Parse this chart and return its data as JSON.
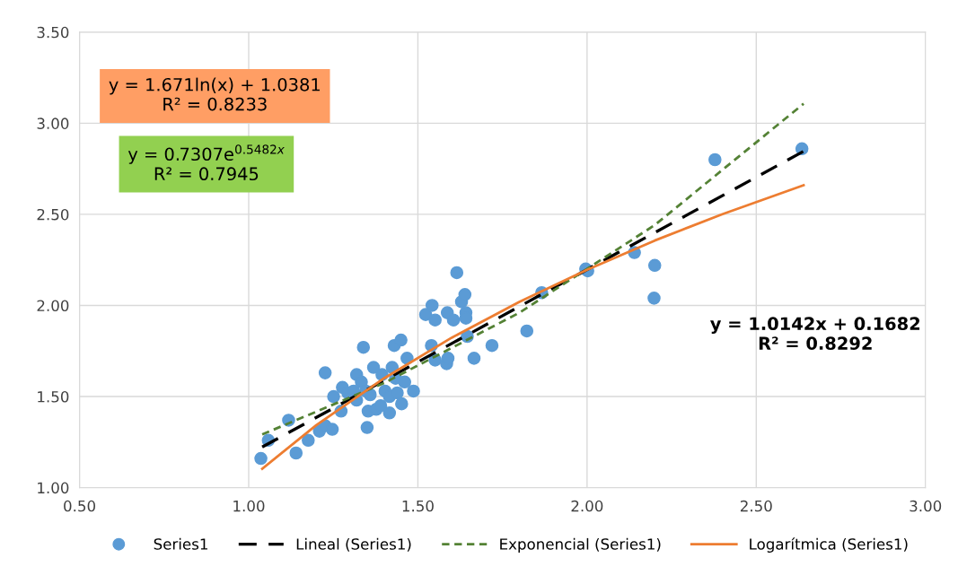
{
  "chart_data": {
    "type": "scatter",
    "xlim": [
      0.5,
      3.0
    ],
    "ylim": [
      1.0,
      3.5
    ],
    "xticks": [
      {
        "value": 0.5,
        "label": "0.50"
      },
      {
        "value": 1.0,
        "label": "1.00"
      },
      {
        "value": 1.5,
        "label": "1.50"
      },
      {
        "value": 2.0,
        "label": "2.00"
      },
      {
        "value": 2.5,
        "label": "2.50"
      },
      {
        "value": 3.0,
        "label": "3.00"
      }
    ],
    "yticks": [
      {
        "value": 1.0,
        "label": "1.00"
      },
      {
        "value": 1.5,
        "label": "1.50"
      },
      {
        "value": 2.0,
        "label": "2.00"
      },
      {
        "value": 2.5,
        "label": "2.50"
      },
      {
        "value": 3.0,
        "label": "3.00"
      },
      {
        "value": 3.5,
        "label": "3.50"
      }
    ],
    "grid": true,
    "legend": "bottom",
    "series": [
      {
        "name": "Series1",
        "marker": "circle",
        "color": "#5b9bd5",
        "x": [
          1.036,
          1.058,
          1.118,
          1.14,
          1.176,
          1.209,
          1.226,
          1.247,
          1.226,
          1.251,
          1.273,
          1.277,
          1.293,
          1.319,
          1.319,
          1.333,
          1.339,
          1.31,
          1.346,
          1.35,
          1.353,
          1.359,
          1.369,
          1.377,
          1.39,
          1.394,
          1.403,
          1.416,
          1.416,
          1.424,
          1.43,
          1.434,
          1.439,
          1.45,
          1.452,
          1.461,
          1.468,
          1.487,
          1.523,
          1.542,
          1.551,
          1.54,
          1.551,
          1.585,
          1.589,
          1.587,
          1.605,
          1.615,
          1.629,
          1.639,
          1.642,
          1.642,
          1.646,
          1.666,
          1.719,
          1.822,
          1.866,
          1.996,
          2.002,
          2.14,
          2.2,
          2.198,
          2.378,
          2.635
        ],
        "values": [
          1.16,
          1.26,
          1.37,
          1.19,
          1.26,
          1.31,
          1.34,
          1.32,
          1.63,
          1.5,
          1.42,
          1.55,
          1.52,
          1.62,
          1.48,
          1.58,
          1.77,
          1.53,
          1.53,
          1.33,
          1.42,
          1.51,
          1.66,
          1.43,
          1.45,
          1.62,
          1.53,
          1.41,
          1.5,
          1.66,
          1.78,
          1.6,
          1.52,
          1.81,
          1.46,
          1.58,
          1.71,
          1.53,
          1.95,
          2.0,
          1.92,
          1.78,
          1.7,
          1.68,
          1.71,
          1.96,
          1.92,
          2.18,
          2.02,
          2.06,
          1.96,
          1.93,
          1.83,
          1.71,
          1.78,
          1.86,
          2.07,
          2.2,
          2.19,
          2.29,
          2.22,
          2.04,
          2.8,
          2.86
        ]
      },
      {
        "name": "Lineal (Series1)",
        "type": "line",
        "color": "#000000",
        "line_style": "dashed",
        "marker": "none",
        "x": [
          1.04,
          2.64
        ],
        "values": [
          1.223,
          2.846
        ]
      },
      {
        "name": "Exponencial (Series1)",
        "type": "line",
        "color": "#548235",
        "line_style": "dotted",
        "marker": "none",
        "x": [
          1.04,
          1.4,
          1.8,
          2.2,
          2.64
        ],
        "values": [
          1.292,
          1.574,
          1.96,
          2.441,
          3.107
        ]
      },
      {
        "name": "Logarítmica (Series1)",
        "type": "line",
        "color": "#ed7d31",
        "line_style": "solid",
        "marker": "none",
        "x": [
          1.04,
          1.2,
          1.4,
          1.6,
          1.8,
          2.0,
          2.2,
          2.4,
          2.64
        ],
        "values": [
          1.104,
          1.343,
          1.6,
          1.823,
          2.02,
          2.196,
          2.356,
          2.501,
          2.66
        ]
      }
    ],
    "annotations": [
      "y = 1.671ln(x) + 1.0381\nR² = 0.8233",
      "y = 0.7307e$^{0.5482x}$\nR² = 0.7945",
      "y = 1.0142x + 0.1682\nR² = 0.8292"
    ]
  }
}
